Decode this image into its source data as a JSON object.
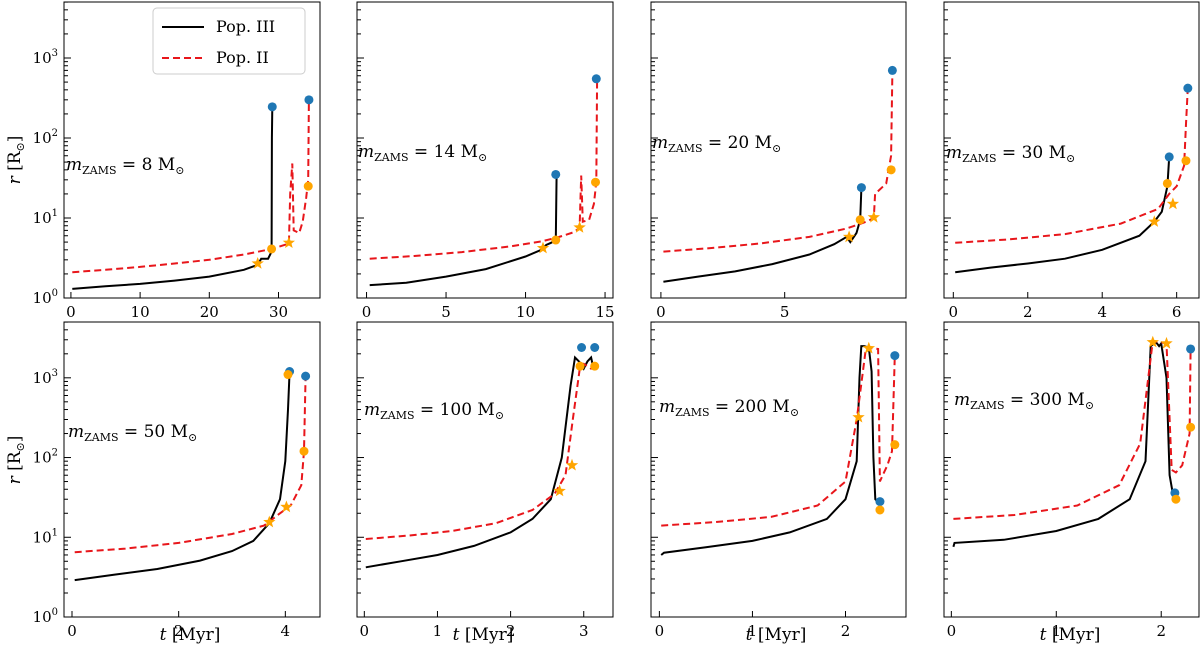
{
  "legend": {
    "pop3": "Pop. III",
    "pop2": "Pop. II"
  },
  "axes": {
    "ylabel_symbol": "r",
    "ylabel_unit": " [R",
    "ylabel_sun": "⊙",
    "ylabel_close": "]",
    "xlabel_symbol": "t",
    "xlabel_unit": " [Myr]",
    "ytick_base": "10",
    "ytick_exponents": [
      "0",
      "1",
      "2",
      "3"
    ]
  },
  "panel_label": {
    "m": "m",
    "sub": "ZAMS",
    "eq": " = ",
    "unit": " M",
    "sun": "⊙"
  },
  "colors": {
    "pop3": "#000000",
    "pop2": "#e8161b",
    "circle": "#1f77b4",
    "orange": "#ffa500"
  },
  "chart_data": [
    {
      "type": "line",
      "mass": "8",
      "xlim": [
        -1,
        36
      ],
      "ylim_log10": [
        0,
        3.7
      ],
      "xticks": [
        0,
        10,
        20,
        30
      ],
      "series": [
        {
          "name": "Pop. III",
          "style": "solid",
          "t": [
            0.2,
            5,
            10,
            15,
            20,
            25,
            27,
            27.5,
            28.5,
            29,
            29.05,
            29.1
          ],
          "r": [
            1.3,
            1.4,
            1.5,
            1.65,
            1.85,
            2.25,
            2.6,
            3.1,
            3.1,
            3.8,
            100,
            245
          ]
        },
        {
          "name": "Pop. II",
          "style": "dashed",
          "t": [
            0.2,
            5,
            10,
            15,
            20,
            25,
            29,
            31.5,
            31.7,
            32.0,
            32.2,
            33.0,
            33.5,
            34.0,
            34.3,
            34.4
          ],
          "r": [
            2.1,
            2.25,
            2.45,
            2.7,
            3.0,
            3.5,
            4.1,
            4.8,
            20,
            48,
            7,
            6.5,
            9,
            18,
            30,
            300
          ]
        }
      ],
      "circles": [
        [
          29.1,
          245
        ],
        [
          34.4,
          300
        ]
      ],
      "orange_dots": [
        [
          29.0,
          4.1
        ],
        [
          34.3,
          25
        ]
      ],
      "stars": [
        [
          27.0,
          2.7
        ],
        [
          31.5,
          4.9
        ]
      ]
    },
    {
      "type": "line",
      "mass": "14",
      "xlim": [
        -0.6,
        15.5
      ],
      "ylim_log10": [
        0,
        3.7
      ],
      "xticks": [
        0,
        5,
        10,
        15
      ],
      "series": [
        {
          "name": "Pop. III",
          "style": "solid",
          "t": [
            0.2,
            2.5,
            5,
            7.5,
            10,
            11,
            11.3,
            11.6,
            11.9,
            11.95
          ],
          "r": [
            1.45,
            1.55,
            1.85,
            2.3,
            3.3,
            4.0,
            4.6,
            4.9,
            5.3,
            35
          ]
        },
        {
          "name": "Pop. II",
          "style": "dashed",
          "t": [
            0.2,
            3,
            6,
            9,
            11,
            12,
            13,
            13.4,
            13.5,
            13.6,
            14.0,
            14.3,
            14.45,
            14.5
          ],
          "r": [
            3.1,
            3.35,
            3.75,
            4.4,
            5.1,
            5.7,
            6.6,
            7.5,
            34,
            9.0,
            9.5,
            15,
            28,
            550
          ]
        }
      ],
      "circles": [
        [
          11.9,
          35
        ],
        [
          14.45,
          550
        ]
      ],
      "orange_dots": [
        [
          11.9,
          5.3
        ],
        [
          14.4,
          28
        ]
      ],
      "stars": [
        [
          11.1,
          4.2
        ],
        [
          13.4,
          7.6
        ]
      ]
    },
    {
      "type": "line",
      "mass": "20",
      "xlim": [
        -0.4,
        9.9
      ],
      "ylim_log10": [
        0,
        3.7
      ],
      "xticks": [
        0,
        5
      ],
      "series": [
        {
          "name": "Pop. III",
          "style": "solid",
          "t": [
            0.1,
            1.5,
            3,
            4.5,
            6,
            7,
            7.5,
            7.65,
            7.9,
            8.05,
            8.1
          ],
          "r": [
            1.6,
            1.85,
            2.15,
            2.65,
            3.5,
            4.7,
            5.8,
            5.0,
            6.5,
            9.5,
            24
          ]
        },
        {
          "name": "Pop. II",
          "style": "dashed",
          "t": [
            0.1,
            2,
            4,
            6,
            7.5,
            8.3,
            8.6,
            8.65,
            9.1,
            9.3,
            9.35
          ],
          "r": [
            3.8,
            4.2,
            4.8,
            5.8,
            7.4,
            9.0,
            10.0,
            20,
            27,
            60,
            700
          ]
        }
      ],
      "circles": [
        [
          8.1,
          24
        ],
        [
          9.35,
          700
        ]
      ],
      "orange_dots": [
        [
          8.05,
          9.5
        ],
        [
          9.3,
          40
        ]
      ],
      "stars": [
        [
          7.6,
          5.8
        ],
        [
          8.6,
          10.2
        ]
      ]
    },
    {
      "type": "line",
      "mass": "30",
      "xlim": [
        -0.25,
        6.6
      ],
      "ylim_log10": [
        0,
        3.7
      ],
      "xticks": [
        0,
        2,
        4,
        6
      ],
      "series": [
        {
          "name": "Pop. III",
          "style": "solid",
          "t": [
            0.05,
            1,
            2,
            3,
            4,
            5,
            5.4,
            5.6,
            5.75,
            5.8
          ],
          "r": [
            2.1,
            2.4,
            2.7,
            3.1,
            4.0,
            6.0,
            9.0,
            12,
            25,
            58
          ]
        },
        {
          "name": "Pop. II",
          "style": "dashed",
          "t": [
            0.05,
            1.5,
            3,
            4.5,
            5.5,
            5.8,
            6.0,
            6.2,
            6.25,
            6.3
          ],
          "r": [
            4.9,
            5.4,
            6.3,
            8.5,
            13,
            20,
            25,
            45,
            150,
            420
          ]
        }
      ],
      "circles": [
        [
          5.8,
          58
        ],
        [
          6.3,
          420
        ]
      ],
      "orange_dots": [
        [
          5.75,
          27
        ],
        [
          6.25,
          52
        ]
      ],
      "stars": [
        [
          5.4,
          9.0
        ],
        [
          5.9,
          15
        ]
      ]
    },
    {
      "type": "line",
      "mass": "50",
      "xlim": [
        -0.15,
        4.65
      ],
      "ylim_log10": [
        0,
        3.7
      ],
      "xticks": [
        0,
        2,
        4
      ],
      "series": [
        {
          "name": "Pop. III",
          "style": "solid",
          "t": [
            0.05,
            0.8,
            1.6,
            2.4,
            3.0,
            3.4,
            3.7,
            3.9,
            4.0,
            4.05,
            4.08
          ],
          "r": [
            2.9,
            3.4,
            4.0,
            5.1,
            6.7,
            9.0,
            15,
            30,
            90,
            400,
            1200
          ]
        },
        {
          "name": "Pop. II",
          "style": "dashed",
          "t": [
            0.05,
            1,
            2,
            3,
            3.6,
            3.9,
            4.1,
            4.3,
            4.35,
            4.38
          ],
          "r": [
            6.5,
            7.2,
            8.5,
            11,
            14,
            20,
            25,
            45,
            120,
            1050
          ]
        }
      ],
      "circles": [
        [
          4.08,
          1200
        ],
        [
          4.38,
          1050
        ]
      ],
      "orange_dots": [
        [
          4.05,
          1100
        ],
        [
          4.35,
          120
        ]
      ],
      "stars": [
        [
          3.7,
          15.5
        ],
        [
          4.02,
          24
        ]
      ]
    },
    {
      "type": "line",
      "mass": "100",
      "xlim": [
        -0.1,
        3.4
      ],
      "ylim_log10": [
        0,
        3.7
      ],
      "xticks": [
        0,
        1,
        2,
        3
      ],
      "series": [
        {
          "name": "Pop. III",
          "style": "solid",
          "t": [
            0.02,
            0.5,
            1,
            1.5,
            2,
            2.3,
            2.55,
            2.7,
            2.82,
            2.88,
            2.95,
            3.0,
            3.05,
            3.1,
            3.12,
            3.15
          ],
          "r": [
            4.2,
            5.0,
            6.0,
            7.8,
            11.5,
            17,
            30,
            100,
            800,
            1800,
            1550,
            1300,
            1600,
            1800,
            1500,
            1400
          ]
        },
        {
          "name": "Pop. II",
          "style": "dashed",
          "t": [
            0.02,
            0.6,
            1.2,
            1.8,
            2.3,
            2.6,
            2.75,
            2.85,
            2.95,
            3.0,
            3.1,
            3.15
          ],
          "r": [
            9.5,
            10.5,
            12,
            15,
            22,
            35,
            60,
            300,
            1400,
            1500,
            1300,
            1350
          ]
        }
      ],
      "circles": [
        [
          2.97,
          2400
        ],
        [
          3.15,
          2400
        ]
      ],
      "orange_dots": [
        [
          2.95,
          1400
        ],
        [
          3.15,
          1400
        ]
      ],
      "stars": [
        [
          2.67,
          38
        ],
        [
          2.84,
          80
        ]
      ]
    },
    {
      "type": "line",
      "mass": "200",
      "xlim": [
        -0.09,
        2.65
      ],
      "ylim_log10": [
        0,
        3.7
      ],
      "xticks": [
        0,
        1,
        2
      ],
      "series": [
        {
          "name": "Pop. III",
          "style": "solid",
          "t": [
            0.02,
            0.05,
            0.5,
            1,
            1.4,
            1.8,
            2.0,
            2.12,
            2.15,
            2.17,
            2.2,
            2.25,
            2.28,
            2.3,
            2.32,
            2.38
          ],
          "r": [
            6.0,
            6.4,
            7.5,
            9.0,
            11.5,
            17,
            30,
            90,
            1000,
            2500,
            2500,
            2400,
            1200,
            100,
            30,
            25
          ]
        },
        {
          "name": "Pop. II",
          "style": "dashed",
          "t": [
            0.02,
            0.6,
            1.2,
            1.7,
            2.0,
            2.12,
            2.22,
            2.35,
            2.37,
            2.4,
            2.45,
            2.5,
            2.53
          ],
          "r": [
            14,
            15.5,
            18,
            25,
            50,
            300,
            2400,
            2300,
            50,
            60,
            80,
            120,
            1900
          ]
        }
      ],
      "circles": [
        [
          2.37,
          28
        ],
        [
          2.53,
          1900
        ]
      ],
      "orange_dots": [
        [
          2.37,
          22
        ],
        [
          2.53,
          145
        ]
      ],
      "stars": [
        [
          2.14,
          320
        ],
        [
          2.25,
          2350
        ]
      ]
    },
    {
      "type": "line",
      "mass": "300",
      "xlim": [
        -0.07,
        2.36
      ],
      "ylim_log10": [
        0,
        3.7
      ],
      "xticks": [
        0,
        1,
        2
      ],
      "series": [
        {
          "name": "Pop. III",
          "style": "solid",
          "t": [
            0.02,
            0.03,
            0.5,
            1,
            1.4,
            1.7,
            1.85,
            1.9,
            1.95,
            1.98,
            2.0,
            2.05,
            2.08,
            2.12
          ],
          "r": [
            7.6,
            8.5,
            9.3,
            12,
            17,
            30,
            90,
            2500,
            2800,
            2500,
            2700,
            1000,
            60,
            30
          ]
        },
        {
          "name": "Pop. II",
          "style": "dashed",
          "t": [
            0.02,
            0.6,
            1.2,
            1.6,
            1.8,
            1.92,
            2.05,
            2.1,
            2.14,
            2.2,
            2.27,
            2.28
          ],
          "r": [
            17,
            19,
            25,
            45,
            150,
            2900,
            2700,
            70,
            65,
            80,
            200,
            2300
          ]
        }
      ],
      "circles": [
        [
          2.13,
          36
        ],
        [
          2.28,
          2300
        ]
      ],
      "orange_dots": [
        [
          2.14,
          30
        ],
        [
          2.28,
          240
        ]
      ],
      "stars": [
        [
          1.92,
          2800
        ],
        [
          2.05,
          2700
        ]
      ]
    }
  ]
}
